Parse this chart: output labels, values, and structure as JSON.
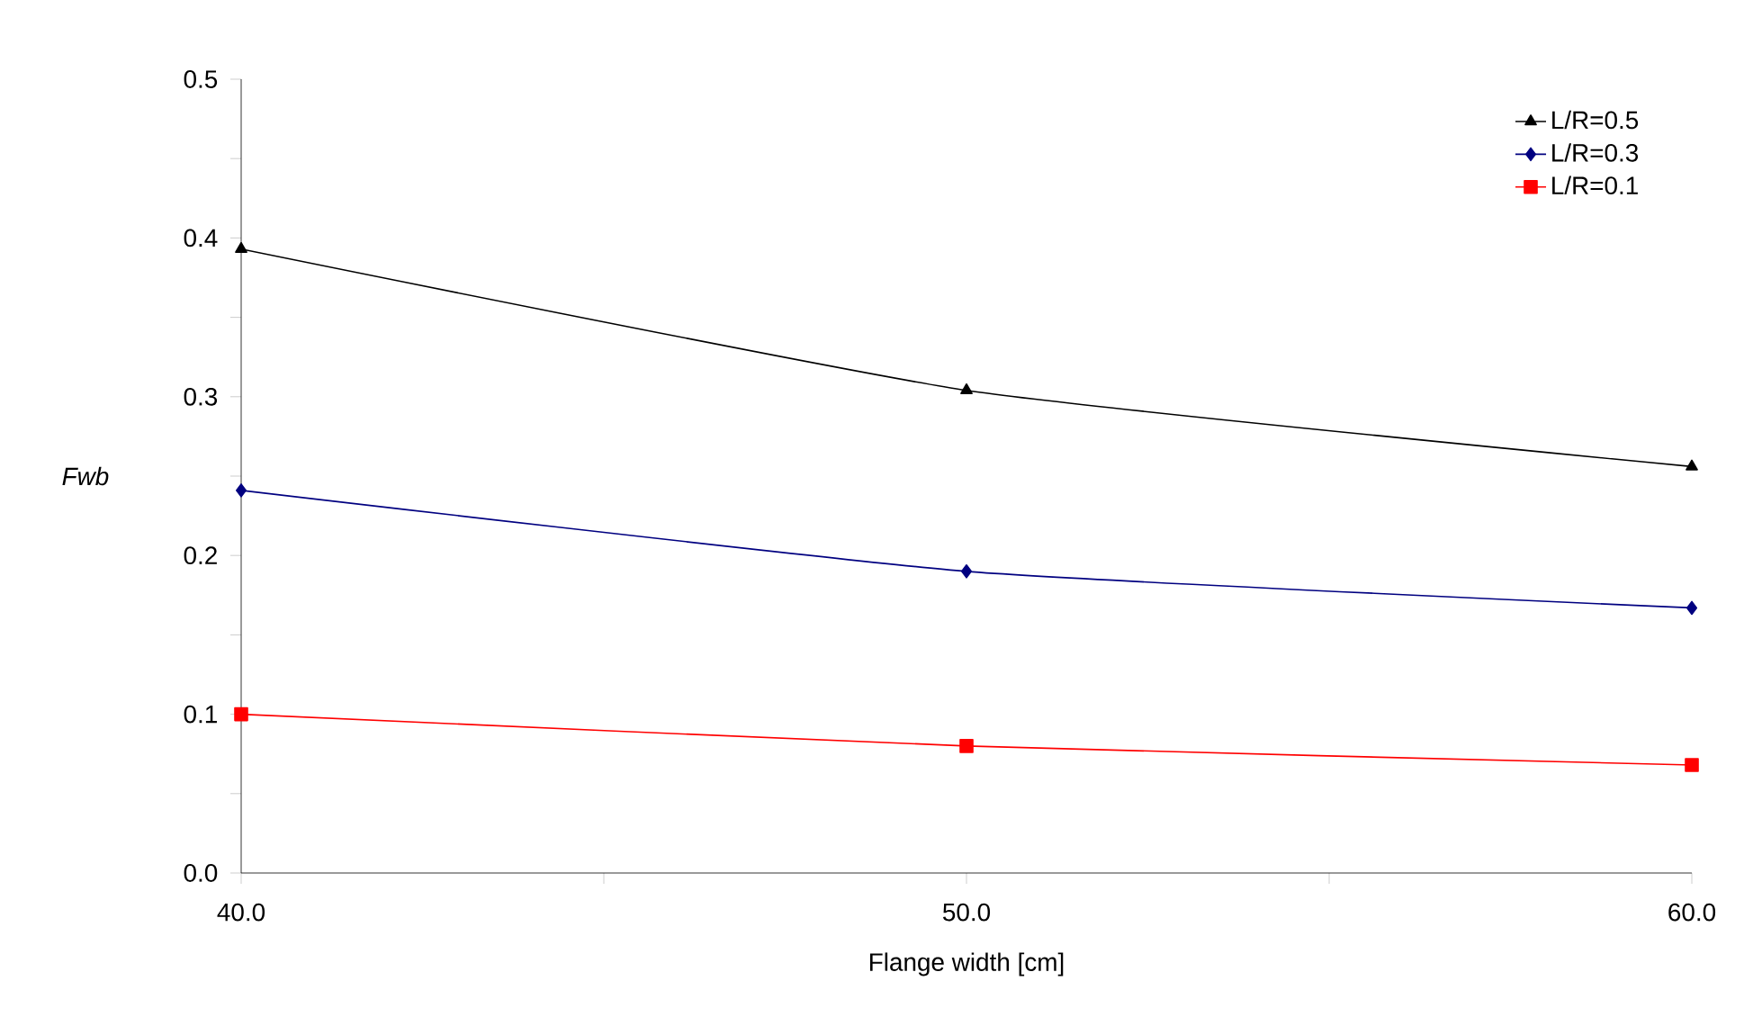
{
  "chart_data": {
    "type": "line",
    "xlabel": "Flange width [cm]",
    "ylabel": "Fwb",
    "x": [
      40,
      50,
      60
    ],
    "series": [
      {
        "name": "L/R=0.5",
        "color": "#000000",
        "marker": "triangle",
        "values": [
          0.393,
          0.304,
          0.256
        ]
      },
      {
        "name": "L/R=0.3",
        "color": "#000080",
        "marker": "diamond",
        "values": [
          0.241,
          0.19,
          0.167
        ]
      },
      {
        "name": "L/R=0.1",
        "color": "#ff0000",
        "marker": "square",
        "values": [
          0.1,
          0.08,
          0.068
        ]
      }
    ],
    "xlim": [
      40,
      60
    ],
    "xticks": [
      {
        "value": 40,
        "label": "40.0"
      },
      {
        "value": 45,
        "label": null
      },
      {
        "value": 50,
        "label": "50.0"
      },
      {
        "value": 55,
        "label": null
      },
      {
        "value": 60,
        "label": "60.0"
      }
    ],
    "ylim": [
      0,
      0.5
    ],
    "yticks": [
      {
        "value": 0,
        "label": "0.0"
      },
      {
        "value": 0.05,
        "label": null
      },
      {
        "value": 0.1,
        "label": "0.1"
      },
      {
        "value": 0.15,
        "label": null
      },
      {
        "value": 0.2,
        "label": "0.2"
      },
      {
        "value": 0.25,
        "label": null
      },
      {
        "value": 0.3,
        "label": "0.3"
      },
      {
        "value": 0.35,
        "label": null
      },
      {
        "value": 0.4,
        "label": "0.4"
      },
      {
        "value": 0.45,
        "label": null
      },
      {
        "value": 0.5,
        "label": "0.5"
      }
    ],
    "grid": false,
    "legend": "top right",
    "line_style": "solid"
  }
}
